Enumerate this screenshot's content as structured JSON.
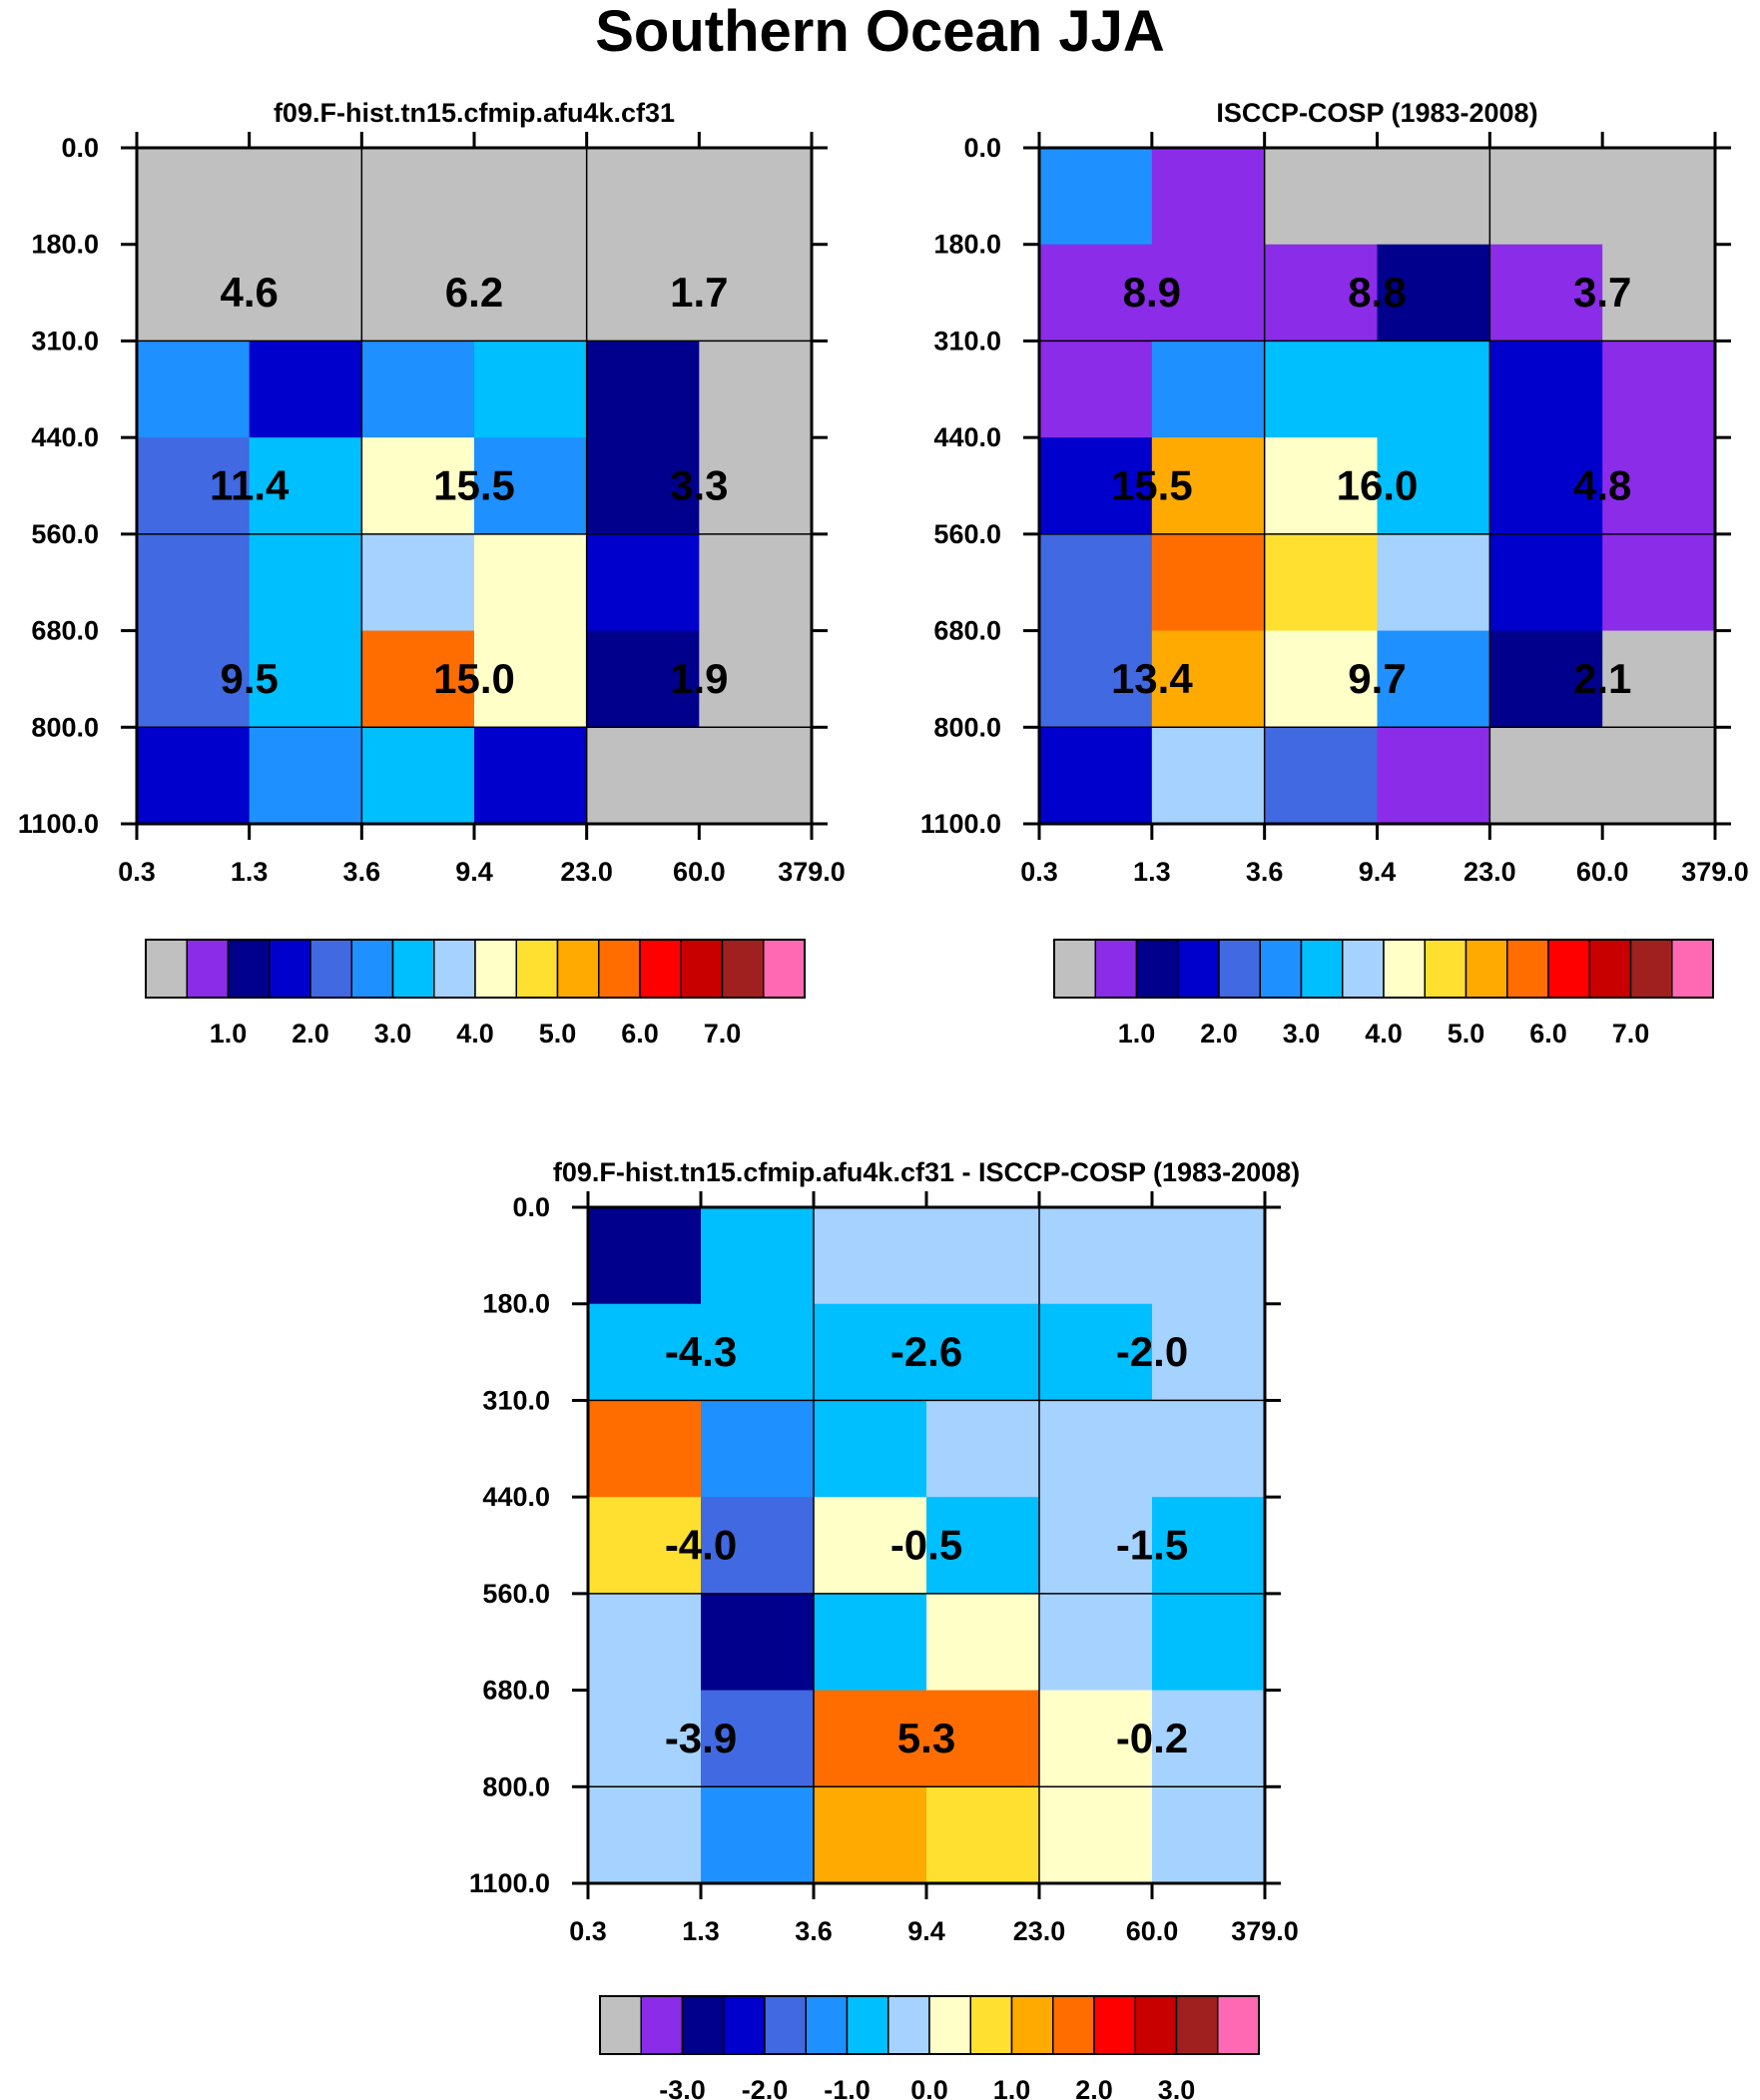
{
  "title": "Southern Ocean JJA",
  "colors": {
    "palette": [
      "#c0c0c0",
      "#8b2ce8",
      "#00008c",
      "#0000cd",
      "#4169e1",
      "#1e90ff",
      "#00bfff",
      "#a6d2ff",
      "#ffffc8",
      "#ffe030",
      "#ffaa00",
      "#ff6d00",
      "#ff0000",
      "#c80000",
      "#a02020",
      "#ff69b4"
    ]
  },
  "chart_data": [
    {
      "type": "heatmap",
      "title": "f09.F-hist.tn15.cfmip.afu4k.cf31",
      "x_ticks": [
        "0.3",
        "1.3",
        "3.6",
        "9.4",
        "23.0",
        "60.0",
        "379.0"
      ],
      "y_ticks": [
        "0.0",
        "180.0",
        "310.0",
        "440.0",
        "560.0",
        "680.0",
        "800.0",
        "1100.0"
      ],
      "cells": [
        [
          0,
          0,
          0,
          0,
          0,
          0
        ],
        [
          0,
          0,
          0,
          0,
          0,
          0
        ],
        [
          5,
          3,
          5,
          6,
          2,
          0
        ],
        [
          4,
          6,
          8,
          5,
          2,
          0
        ],
        [
          4,
          6,
          7,
          8,
          3,
          0
        ],
        [
          4,
          6,
          11,
          8,
          2,
          0
        ],
        [
          3,
          5,
          6,
          3,
          0,
          0
        ]
      ],
      "group_labels": [
        [
          "4.6",
          "6.2",
          "1.7"
        ],
        [
          "11.4",
          "15.5",
          "3.3"
        ],
        [
          "9.5",
          "15.0",
          "1.9"
        ]
      ],
      "colorbar_labels": [
        "1.0",
        "2.0",
        "3.0",
        "4.0",
        "5.0",
        "6.0",
        "7.0"
      ]
    },
    {
      "type": "heatmap",
      "title": "ISCCP-COSP (1983-2008)",
      "x_ticks": [
        "0.3",
        "1.3",
        "3.6",
        "9.4",
        "23.0",
        "60.0",
        "379.0"
      ],
      "y_ticks": [
        "0.0",
        "180.0",
        "310.0",
        "440.0",
        "560.0",
        "680.0",
        "800.0",
        "1100.0"
      ],
      "cells": [
        [
          5,
          1,
          0,
          0,
          0,
          0
        ],
        [
          1,
          1,
          1,
          2,
          1,
          0
        ],
        [
          1,
          5,
          6,
          6,
          3,
          1
        ],
        [
          3,
          10,
          8,
          6,
          3,
          1
        ],
        [
          4,
          11,
          9,
          7,
          3,
          1
        ],
        [
          4,
          10,
          8,
          5,
          2,
          0
        ],
        [
          3,
          7,
          4,
          1,
          0,
          0
        ]
      ],
      "group_labels": [
        [
          "8.9",
          "8.8",
          "3.7"
        ],
        [
          "15.5",
          "16.0",
          "4.8"
        ],
        [
          "13.4",
          "9.7",
          "2.1"
        ]
      ],
      "colorbar_labels": [
        "1.0",
        "2.0",
        "3.0",
        "4.0",
        "5.0",
        "6.0",
        "7.0"
      ]
    },
    {
      "type": "heatmap",
      "title": "f09.F-hist.tn15.cfmip.afu4k.cf31 - ISCCP-COSP (1983-2008)",
      "x_ticks": [
        "0.3",
        "1.3",
        "3.6",
        "9.4",
        "23.0",
        "60.0",
        "379.0"
      ],
      "y_ticks": [
        "0.0",
        "180.0",
        "310.0",
        "440.0",
        "560.0",
        "680.0",
        "800.0",
        "1100.0"
      ],
      "cells": [
        [
          2,
          6,
          7,
          7,
          7,
          7
        ],
        [
          6,
          6,
          6,
          6,
          6,
          7
        ],
        [
          11,
          5,
          6,
          7,
          7,
          7
        ],
        [
          9,
          4,
          8,
          6,
          7,
          6
        ],
        [
          7,
          2,
          6,
          8,
          7,
          6
        ],
        [
          7,
          4,
          11,
          11,
          8,
          7
        ],
        [
          7,
          5,
          10,
          9,
          8,
          7
        ]
      ],
      "group_labels": [
        [
          "-4.3",
          "-2.6",
          "-2.0"
        ],
        [
          "-4.0",
          "-0.5",
          "-1.5"
        ],
        [
          "-3.9",
          "5.3",
          "-0.2"
        ]
      ],
      "colorbar_labels": [
        "-3.0",
        "-2.0",
        "-1.0",
        "0.0",
        "1.0",
        "2.0",
        "3.0"
      ]
    }
  ]
}
